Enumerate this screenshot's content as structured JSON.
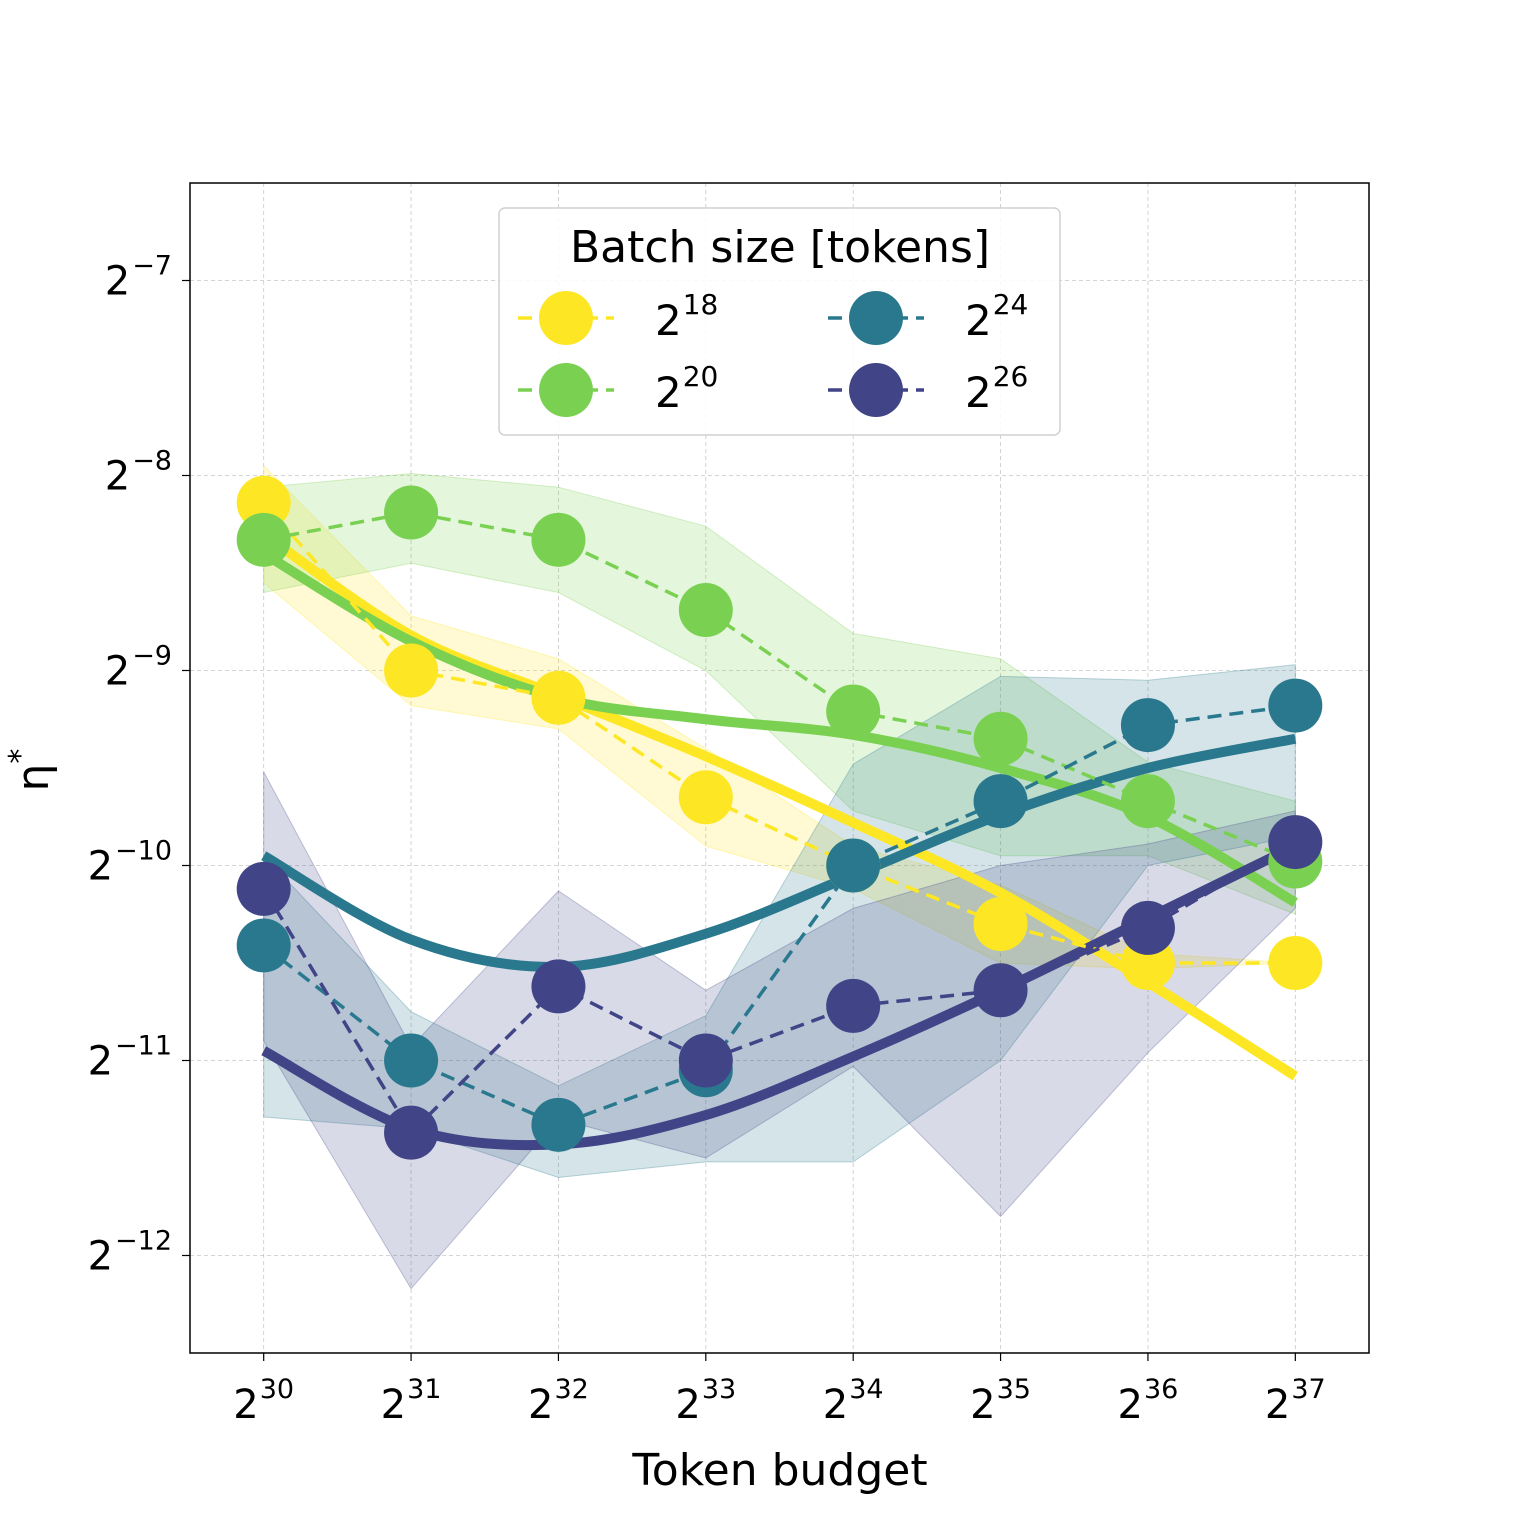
{
  "chart_data": {
    "type": "line",
    "xlabel": "Token budget",
    "ylabel": "η*",
    "x_scale": "log2",
    "y_scale": "log2",
    "x_exponents": [
      30,
      31,
      32,
      33,
      34,
      35,
      36,
      37
    ],
    "x_tick_labels": [
      {
        "base": "2",
        "exp": "30"
      },
      {
        "base": "2",
        "exp": "31"
      },
      {
        "base": "2",
        "exp": "32"
      },
      {
        "base": "2",
        "exp": "33"
      },
      {
        "base": "2",
        "exp": "34"
      },
      {
        "base": "2",
        "exp": "35"
      },
      {
        "base": "2",
        "exp": "36"
      },
      {
        "base": "2",
        "exp": "37"
      }
    ],
    "y_tick_labels": [
      {
        "value": -7,
        "base": "2",
        "exp": "−7"
      },
      {
        "value": -8,
        "base": "2",
        "exp": "−8"
      },
      {
        "value": -9,
        "base": "2",
        "exp": "−9"
      },
      {
        "value": -10,
        "base": "2",
        "exp": "−10"
      },
      {
        "value": -11,
        "base": "2",
        "exp": "−11"
      },
      {
        "value": -12,
        "base": "2",
        "exp": "−12"
      }
    ],
    "xlim_exp": [
      29.5,
      37.5
    ],
    "ylim_exp": [
      -12.5,
      -6.5
    ],
    "grid": true,
    "legend": {
      "title": "Batch size [tokens]",
      "placement": "top-center",
      "columns": 2
    },
    "series": [
      {
        "name": "2^18",
        "label_base": "2",
        "label_exp": "18",
        "color": "#fde725",
        "y_log2": [
          -8.14,
          -9.0,
          -9.14,
          -9.65,
          -10.0,
          -10.3,
          -10.5,
          -10.5
        ],
        "band_lower": [
          -8.55,
          -9.18,
          -9.3,
          -9.9,
          -10.12,
          -10.5,
          -10.53,
          -10.5
        ],
        "band_upper": [
          -7.95,
          -8.72,
          -8.94,
          -9.4,
          -9.9,
          -10.1,
          -10.45,
          -10.5
        ],
        "fit_log2": [
          -8.3,
          -8.82,
          -9.13,
          -9.44,
          -9.78,
          -10.14,
          -10.6,
          -11.08
        ]
      },
      {
        "name": "2^20",
        "label_base": "2",
        "label_exp": "20",
        "color": "#7ad151",
        "y_log2": [
          -8.33,
          -8.19,
          -8.33,
          -8.69,
          -9.21,
          -9.35,
          -9.67,
          -9.98
        ],
        "band_lower": [
          -8.6,
          -8.45,
          -8.6,
          -9.0,
          -9.72,
          -9.95,
          -9.95,
          -10.25
        ],
        "band_upper": [
          -8.06,
          -7.99,
          -8.06,
          -8.26,
          -8.81,
          -8.94,
          -9.47,
          -9.67
        ],
        "fit_log2": [
          -8.4,
          -8.85,
          -9.14,
          -9.25,
          -9.33,
          -9.5,
          -9.75,
          -10.19
        ]
      },
      {
        "name": "2^24",
        "label_base": "2",
        "label_exp": "24",
        "color": "#2a788e",
        "y_log2": [
          -10.41,
          -11.0,
          -11.33,
          -11.05,
          -10.0,
          -9.67,
          -9.28,
          -9.18
        ],
        "band_lower": [
          -11.29,
          -11.35,
          -11.6,
          -11.52,
          -11.52,
          -11.0,
          -10.0,
          -9.85
        ],
        "band_upper": [
          -9.95,
          -10.75,
          -11.13,
          -10.77,
          -9.48,
          -9.03,
          -9.05,
          -8.97
        ],
        "fit_log2": [
          -9.95,
          -10.38,
          -10.52,
          -10.35,
          -10.05,
          -9.74,
          -9.5,
          -9.35
        ]
      },
      {
        "name": "2^26",
        "label_base": "2",
        "label_exp": "26",
        "color": "#414487",
        "y_log2": [
          -10.12,
          -11.37,
          -10.62,
          -11.0,
          -10.72,
          -10.64,
          -10.32,
          -9.88
        ],
        "band_lower": [
          -10.9,
          -12.17,
          -11.3,
          -11.5,
          -11.03,
          -11.8,
          -10.96,
          -10.22
        ],
        "band_upper": [
          -9.52,
          -10.93,
          -10.13,
          -10.64,
          -10.22,
          -10.0,
          -9.89,
          -9.72
        ],
        "fit_log2": [
          -10.95,
          -11.35,
          -11.43,
          -11.28,
          -10.98,
          -10.64,
          -10.27,
          -9.9
        ]
      }
    ]
  }
}
